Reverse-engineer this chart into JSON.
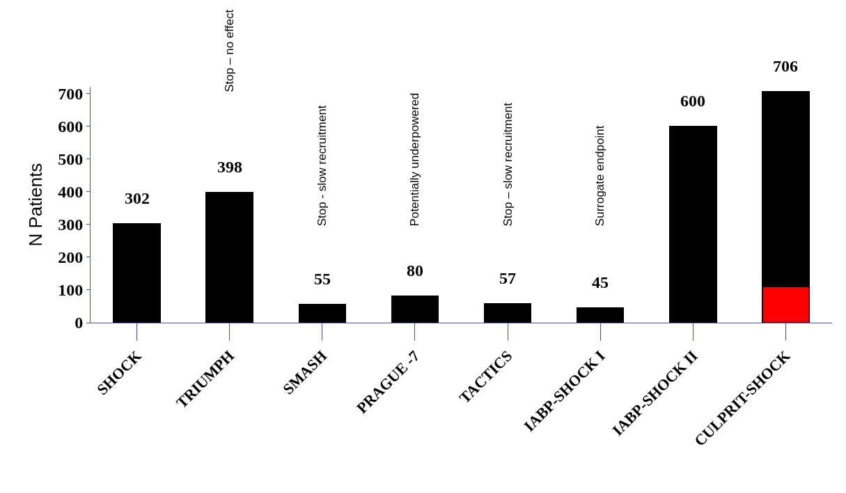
{
  "chart_data": {
    "type": "bar",
    "ylabel": "N Patients",
    "categories": [
      "SHOCK",
      "TRIUMPH",
      "SMASH",
      "PRAGUE -7",
      "TACTICS",
      "IABP-SHOCK I",
      "IABP-SHOCK II",
      "CULPRIT-SHOCK"
    ],
    "stacked": true,
    "series": [
      {
        "color": "#ff0000",
        "values": [
          null,
          null,
          null,
          null,
          null,
          null,
          null,
          110
        ]
      },
      {
        "color": "#000000",
        "values": [
          302,
          398,
          55,
          80,
          57,
          45,
          600,
          596
        ]
      }
    ],
    "totals": [
      "302",
      "398",
      "55",
      "80",
      "57",
      "45",
      "600",
      "706"
    ],
    "ylim": [
      0,
      720
    ],
    "yticks": [
      0,
      100,
      200,
      300,
      400,
      500,
      600,
      700
    ],
    "legend": false,
    "annotations": [
      "Stop – no effect",
      "Stop - slow recruitment",
      "Potentially underpowered",
      "Stop – slow recruitment",
      "Surrogate endpoint"
    ]
  }
}
